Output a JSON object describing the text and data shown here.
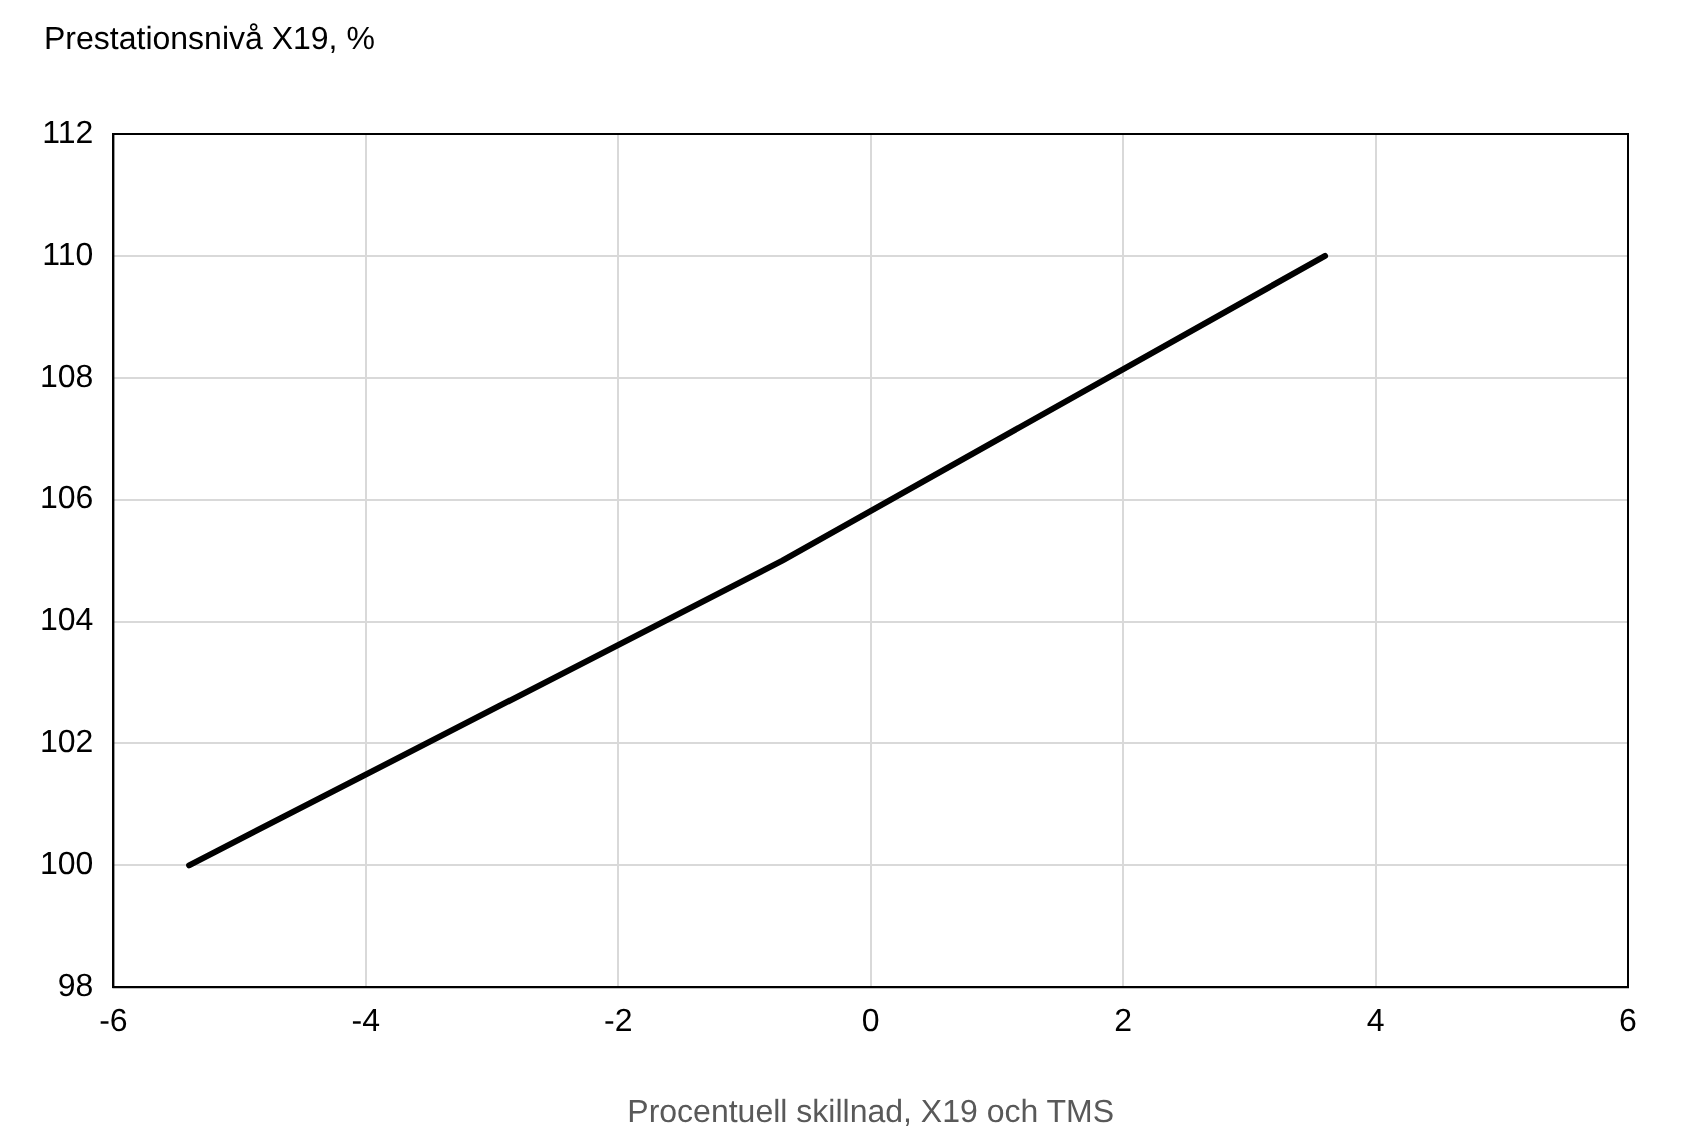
{
  "chart_data": {
    "type": "line",
    "ylabel": "Prestationsnivå X19, %",
    "xlabel": "Procentuell skillnad, X19 och TMS",
    "x": [
      -5.4,
      -0.7,
      3.6
    ],
    "series": [
      {
        "color": "#000000",
        "values": [
          100,
          105,
          110
        ]
      }
    ],
    "xlim": [
      -6,
      6
    ],
    "xticks": [
      -6,
      -4,
      -2,
      0,
      2,
      4,
      6
    ],
    "ylim": [
      98,
      112
    ],
    "yticks": [
      98,
      100,
      102,
      104,
      106,
      108,
      110,
      112
    ],
    "grid": true,
    "legend": false,
    "marker": "none",
    "line_style": "solid"
  }
}
